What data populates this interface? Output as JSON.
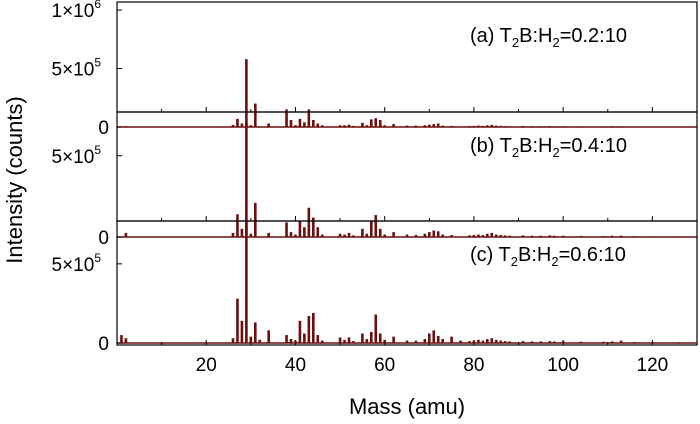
{
  "chart_data": {
    "type": "bar",
    "xlabel": "Mass (amu)",
    "ylabel": "Intensity (counts)",
    "xlim": [
      0,
      130
    ],
    "x_ticks": [
      "20",
      "40",
      "60",
      "80",
      "100",
      "120"
    ],
    "bar_color": "#6b0f0f",
    "grid": false,
    "panels": [
      {
        "label_prefix": "(a) T",
        "label_sub1": "2",
        "label_mid": "B",
        "label_colon1": ":",
        "label_h": "H",
        "label_sub2": "2",
        "label_ratio": "=0.2",
        "label_colon2": ":",
        "label_end": "10",
        "ylim": [
          0,
          1000000
        ],
        "y_ticks": [
          {
            "value": 0,
            "mant": "0",
            "exp": ""
          },
          {
            "value": 500000,
            "mant": "5×10",
            "exp": "5"
          },
          {
            "value": 1000000,
            "mant": "1×10",
            "exp": "6"
          }
        ],
        "bars": [
          [
            2,
            8000
          ],
          [
            26,
            18000
          ],
          [
            27,
            70000
          ],
          [
            28,
            30000
          ],
          [
            29,
            580000
          ],
          [
            30,
            15000
          ],
          [
            31,
            200000
          ],
          [
            34,
            30000
          ],
          [
            38,
            150000
          ],
          [
            39,
            60000
          ],
          [
            40,
            15000
          ],
          [
            41,
            70000
          ],
          [
            42,
            40000
          ],
          [
            43,
            150000
          ],
          [
            44,
            60000
          ],
          [
            45,
            30000
          ],
          [
            46,
            15000
          ],
          [
            50,
            15000
          ],
          [
            51,
            15000
          ],
          [
            52,
            20000
          ],
          [
            53,
            10000
          ],
          [
            55,
            35000
          ],
          [
            56,
            15000
          ],
          [
            57,
            65000
          ],
          [
            58,
            75000
          ],
          [
            59,
            60000
          ],
          [
            60,
            15000
          ],
          [
            62,
            25000
          ],
          [
            65,
            12000
          ],
          [
            67,
            12000
          ],
          [
            69,
            15000
          ],
          [
            70,
            20000
          ],
          [
            71,
            25000
          ],
          [
            72,
            30000
          ],
          [
            73,
            12000
          ],
          [
            75,
            10000
          ],
          [
            79,
            8000
          ],
          [
            80,
            10000
          ],
          [
            81,
            12000
          ],
          [
            82,
            10000
          ],
          [
            83,
            15000
          ],
          [
            84,
            18000
          ],
          [
            85,
            12000
          ],
          [
            86,
            10000
          ],
          [
            87,
            8000
          ],
          [
            88,
            6000
          ],
          [
            91,
            8000
          ],
          [
            93,
            6000
          ],
          [
            95,
            6000
          ],
          [
            97,
            8000
          ],
          [
            98,
            6000
          ],
          [
            100,
            6000
          ],
          [
            104,
            5000
          ],
          [
            109,
            5000
          ],
          [
            111,
            6000
          ],
          [
            113,
            6000
          ],
          [
            116,
            4000
          ],
          [
            120,
            3000
          ],
          [
            126,
            3000
          ]
        ]
      },
      {
        "label_prefix": "(b) T",
        "label_sub1": "2",
        "label_mid": "B",
        "label_colon1": ":",
        "label_h": "H",
        "label_sub2": "2",
        "label_ratio": "=0.4",
        "label_colon2": ":",
        "label_end": "10",
        "ylim": [
          0,
          720000
        ],
        "y_ticks": [
          {
            "value": 0,
            "mant": "0",
            "exp": ""
          },
          {
            "value": 500000,
            "mant": "5×10",
            "exp": "5"
          }
        ],
        "bars": [
          [
            2,
            25000
          ],
          [
            26,
            25000
          ],
          [
            27,
            140000
          ],
          [
            28,
            50000
          ],
          [
            29,
            710000
          ],
          [
            30,
            20000
          ],
          [
            31,
            210000
          ],
          [
            34,
            25000
          ],
          [
            38,
            90000
          ],
          [
            39,
            30000
          ],
          [
            40,
            15000
          ],
          [
            41,
            100000
          ],
          [
            42,
            60000
          ],
          [
            43,
            180000
          ],
          [
            44,
            120000
          ],
          [
            45,
            60000
          ],
          [
            46,
            15000
          ],
          [
            50,
            20000
          ],
          [
            51,
            15000
          ],
          [
            52,
            25000
          ],
          [
            53,
            10000
          ],
          [
            55,
            50000
          ],
          [
            56,
            20000
          ],
          [
            57,
            100000
          ],
          [
            58,
            135000
          ],
          [
            59,
            50000
          ],
          [
            60,
            15000
          ],
          [
            62,
            30000
          ],
          [
            65,
            15000
          ],
          [
            67,
            12000
          ],
          [
            69,
            20000
          ],
          [
            70,
            30000
          ],
          [
            71,
            40000
          ],
          [
            72,
            35000
          ],
          [
            73,
            15000
          ],
          [
            75,
            12000
          ],
          [
            79,
            10000
          ],
          [
            80,
            12000
          ],
          [
            81,
            15000
          ],
          [
            82,
            12000
          ],
          [
            83,
            20000
          ],
          [
            84,
            25000
          ],
          [
            85,
            15000
          ],
          [
            86,
            12000
          ],
          [
            87,
            10000
          ],
          [
            88,
            8000
          ],
          [
            91,
            10000
          ],
          [
            93,
            8000
          ],
          [
            95,
            8000
          ],
          [
            97,
            10000
          ],
          [
            98,
            8000
          ],
          [
            100,
            8000
          ],
          [
            104,
            6000
          ],
          [
            109,
            6000
          ],
          [
            111,
            8000
          ],
          [
            113,
            8000
          ],
          [
            116,
            5000
          ],
          [
            120,
            4000
          ],
          [
            126,
            4000
          ]
        ]
      },
      {
        "label_prefix": "(c) T",
        "label_sub1": "2",
        "label_mid": "B",
        "label_colon1": ":",
        "label_h": "H",
        "label_sub2": "2",
        "label_ratio": "=0.6",
        "label_colon2": ":",
        "label_end": "10",
        "ylim": [
          0,
          720000
        ],
        "y_ticks": [
          {
            "value": 0,
            "mant": "0",
            "exp": ""
          },
          {
            "value": 500000,
            "mant": "5×10",
            "exp": "5"
          }
        ],
        "bars": [
          [
            1,
            50000
          ],
          [
            2,
            30000
          ],
          [
            26,
            30000
          ],
          [
            27,
            280000
          ],
          [
            28,
            140000
          ],
          [
            29,
            760000
          ],
          [
            30,
            40000
          ],
          [
            31,
            130000
          ],
          [
            32,
            20000
          ],
          [
            34,
            80000
          ],
          [
            38,
            50000
          ],
          [
            39,
            25000
          ],
          [
            40,
            15000
          ],
          [
            41,
            140000
          ],
          [
            42,
            60000
          ],
          [
            43,
            170000
          ],
          [
            44,
            190000
          ],
          [
            45,
            50000
          ],
          [
            46,
            15000
          ],
          [
            50,
            35000
          ],
          [
            51,
            20000
          ],
          [
            52,
            35000
          ],
          [
            53,
            12000
          ],
          [
            55,
            60000
          ],
          [
            56,
            25000
          ],
          [
            57,
            70000
          ],
          [
            58,
            180000
          ],
          [
            59,
            60000
          ],
          [
            60,
            20000
          ],
          [
            62,
            40000
          ],
          [
            65,
            15000
          ],
          [
            67,
            15000
          ],
          [
            69,
            25000
          ],
          [
            70,
            60000
          ],
          [
            71,
            80000
          ],
          [
            72,
            45000
          ],
          [
            73,
            25000
          ],
          [
            75,
            40000
          ],
          [
            77,
            15000
          ],
          [
            79,
            12000
          ],
          [
            80,
            15000
          ],
          [
            81,
            20000
          ],
          [
            82,
            15000
          ],
          [
            83,
            25000
          ],
          [
            84,
            30000
          ],
          [
            85,
            20000
          ],
          [
            86,
            15000
          ],
          [
            87,
            12000
          ],
          [
            88,
            10000
          ],
          [
            91,
            12000
          ],
          [
            93,
            10000
          ],
          [
            95,
            10000
          ],
          [
            97,
            12000
          ],
          [
            98,
            10000
          ],
          [
            100,
            12000
          ],
          [
            104,
            8000
          ],
          [
            109,
            8000
          ],
          [
            111,
            10000
          ],
          [
            113,
            15000
          ],
          [
            116,
            6000
          ],
          [
            120,
            5000
          ],
          [
            126,
            5000
          ]
        ]
      }
    ]
  }
}
